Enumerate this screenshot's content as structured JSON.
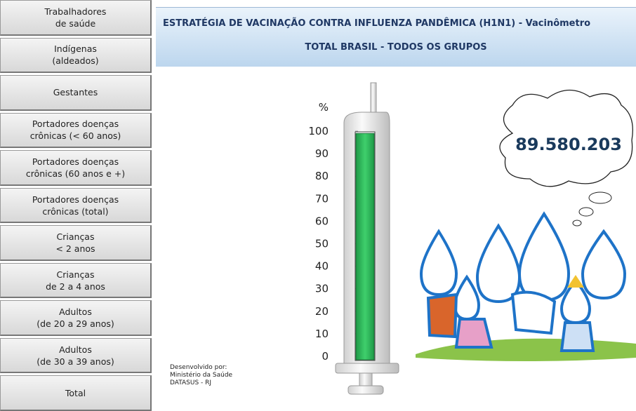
{
  "menu": [
    [
      "Trabalhadores",
      "de saúde"
    ],
    [
      "Indígenas",
      "(aldeados)"
    ],
    [
      "Gestantes"
    ],
    [
      "Portadores doenças",
      "crônicas (< 60 anos)"
    ],
    [
      "Portadores doenças",
      "crônicas (60 anos e +)"
    ],
    [
      "Portadores doenças",
      "crônicas (total)"
    ],
    [
      "Crianças",
      "< 2 anos"
    ],
    [
      "Crianças",
      "de 2 a 4 anos"
    ],
    [
      "Adultos",
      "(de 20 a 29 anos)"
    ],
    [
      "Adultos",
      "(de 30 a 39 anos)"
    ],
    [
      "Total"
    ]
  ],
  "header": {
    "title": "ESTRATÉGIA DE VACINAÇÃO CONTRA INFLUENZA PANDÊMICA (H1N1) - Vacinômetro",
    "subtitle": "TOTAL BRASIL - TODOS OS GRUPOS"
  },
  "gauge": {
    "unit": "%",
    "ylim": [
      0,
      100
    ],
    "yticks": [
      0,
      10,
      20,
      30,
      40,
      50,
      60,
      70,
      80,
      90,
      100
    ],
    "value": 99,
    "color": "#2eb85c"
  },
  "total": "89.580.203",
  "footer": [
    "Desenvolvido por:",
    "Ministério da Saúde",
    "DATASUS - RJ"
  ]
}
